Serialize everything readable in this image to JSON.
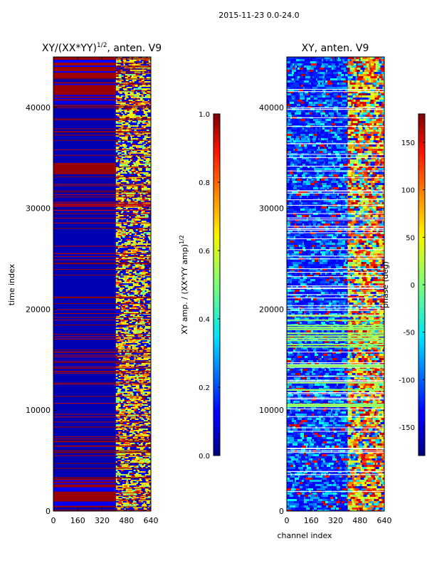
{
  "page": {
    "suptitle": "2015-11-23 0.0-24.0"
  },
  "chart_data": [
    {
      "type": "heatmap",
      "title_main": "XY/(XX*YY)",
      "title_sup": "1/2",
      "title_rest": ", anten. V9",
      "ylabel": "time index",
      "xlim": [
        0,
        640
      ],
      "ylim": [
        0,
        45000
      ],
      "xticks": [
        "0",
        "160",
        "320",
        "480",
        "640"
      ],
      "yticks": [
        "0",
        "10000",
        "20000",
        "30000",
        "40000"
      ],
      "colorbar": {
        "label_main": "XY amp. / (XX*YY amp)",
        "label_sup": "1/2",
        "range": [
          0.0,
          1.0
        ],
        "ticks": [
          "0.0",
          "0.2",
          "0.4",
          "0.6",
          "0.8",
          "1.0"
        ]
      },
      "features": {
        "background_value": 0.05,
        "active_band_channels": [
          410,
          640
        ],
        "saturated_time_blocks": [
          [
            500,
            3200
          ],
          [
            33500,
            34500
          ],
          [
            40500,
            42500
          ],
          [
            43000,
            45000
          ]
        ]
      }
    },
    {
      "type": "heatmap",
      "title": "XY, anten. V9",
      "xlabel": "channel index",
      "xlim": [
        0,
        640
      ],
      "ylim": [
        0,
        45000
      ],
      "xticks": [
        "0",
        "160",
        "320",
        "480",
        "640"
      ],
      "yticks": [
        "0",
        "10000",
        "20000",
        "30000",
        "40000"
      ],
      "colorbar": {
        "label": "phase (deg)",
        "range": [
          -180,
          180
        ],
        "ticks": [
          "-150",
          "-100",
          "-50",
          "0",
          "50",
          "100",
          "150"
        ]
      },
      "features": {
        "background_value_deg": -150,
        "active_band_channels": [
          400,
          640
        ]
      }
    }
  ]
}
